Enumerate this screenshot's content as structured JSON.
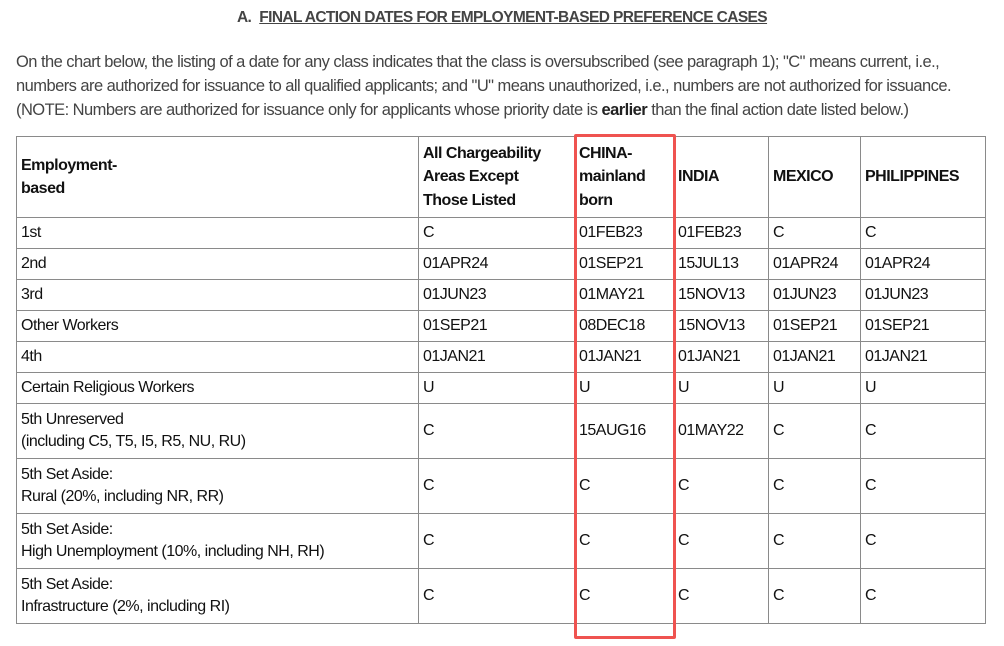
{
  "section": {
    "letter": "A.",
    "title": "FINAL ACTION DATES FOR EMPLOYMENT-BASED PREFERENCE CASES"
  },
  "intro": {
    "line1": "On the chart below, the listing of a date for any class indicates that the class is oversubscribed (see paragraph 1); \"C\" means current, i.e.,",
    "line2": "numbers are authorized for issuance to all qualified applicants; and \"U\" means unauthorized, i.e., numbers are not authorized for issuance.",
    "line3_pre": "(NOTE: Numbers are authorized for issuance only for applicants whose priority date is ",
    "line3_bold": "earlier",
    "line3_post": " than the final action date listed below.)"
  },
  "highlight_color": "#ef5350",
  "table": {
    "headers": [
      "Employment-\nbased",
      "All Chargeability\nAreas Except\nThose Listed",
      "CHINA-\nmainland\nborn",
      "INDIA",
      "MEXICO",
      "PHILIPPINES"
    ],
    "rows": [
      {
        "category": "1st",
        "values": [
          "C",
          "01FEB23",
          "01FEB23",
          "C",
          "C"
        ]
      },
      {
        "category": "2nd",
        "values": [
          "01APR24",
          "01SEP21",
          "15JUL13",
          "01APR24",
          "01APR24"
        ]
      },
      {
        "category": "3rd",
        "values": [
          "01JUN23",
          "01MAY21",
          "15NOV13",
          "01JUN23",
          "01JUN23"
        ]
      },
      {
        "category": "Other Workers",
        "values": [
          "01SEP21",
          "08DEC18",
          "15NOV13",
          "01SEP21",
          "01SEP21"
        ]
      },
      {
        "category": "4th",
        "values": [
          "01JAN21",
          "01JAN21",
          "01JAN21",
          "01JAN21",
          "01JAN21"
        ]
      },
      {
        "category": "Certain Religious Workers",
        "values": [
          "U",
          "U",
          "U",
          "U",
          "U"
        ]
      },
      {
        "category": "5th Unreserved\n(including C5, T5, I5, R5, NU, RU)",
        "values": [
          "C",
          "15AUG16",
          "01MAY22",
          "C",
          "C"
        ]
      },
      {
        "category": "5th Set Aside:\nRural (20%, including NR, RR)",
        "values": [
          "C",
          "C",
          "C",
          "C",
          "C"
        ]
      },
      {
        "category": "5th Set Aside:\nHigh Unemployment (10%, including NH, RH)",
        "values": [
          "C",
          "C",
          "C",
          "C",
          "C"
        ]
      },
      {
        "category": "5th Set Aside:\nInfrastructure (2%, including RI)",
        "values": [
          "C",
          "C",
          "C",
          "C",
          "C"
        ]
      }
    ]
  }
}
